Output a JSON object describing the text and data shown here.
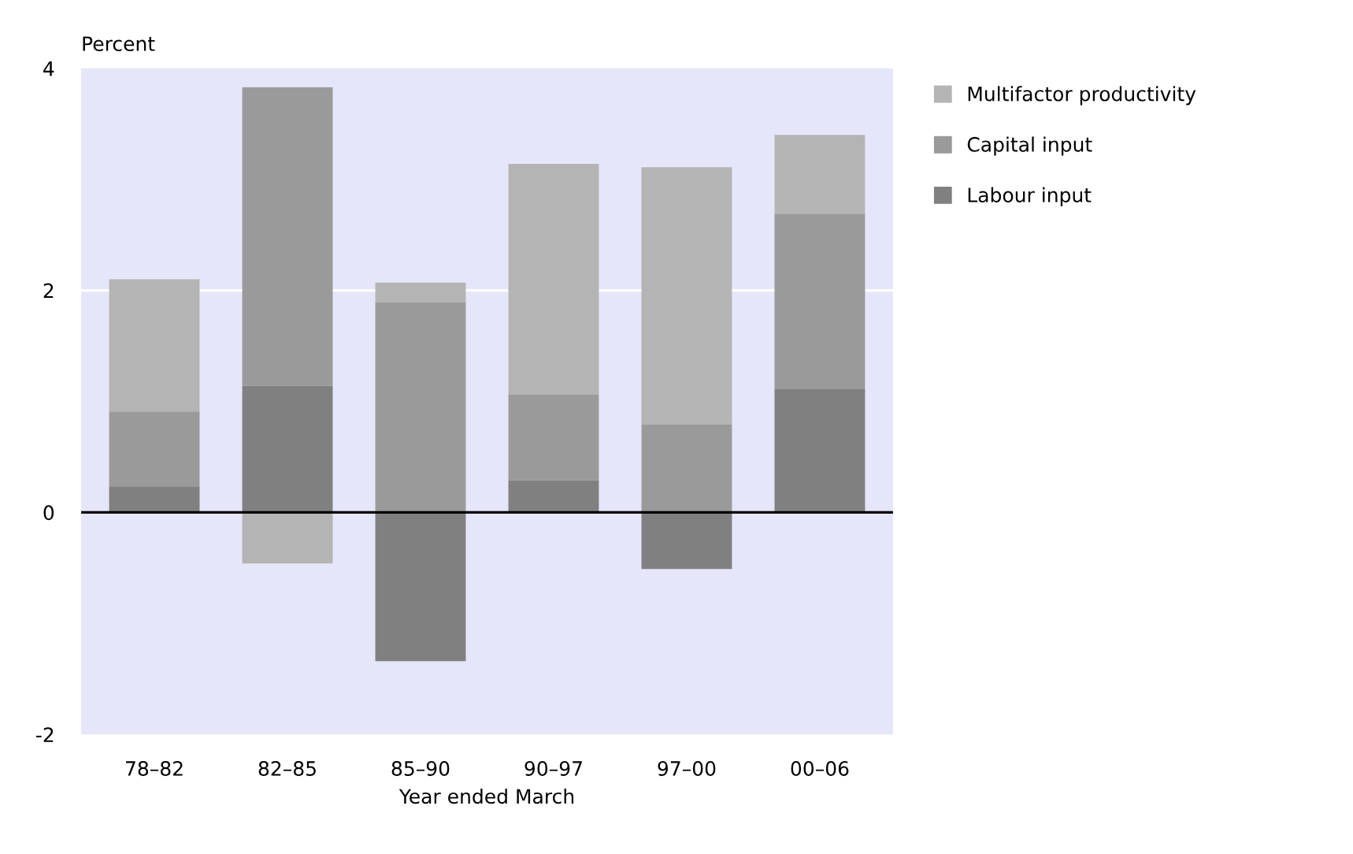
{
  "chart_data": {
    "type": "bar",
    "stacked": true,
    "ylabel": "Percent",
    "xlabel": "Year ended March",
    "categories": [
      "78–82",
      "82–85",
      "85–90",
      "90–97",
      "97–00",
      "00–06"
    ],
    "series": [
      {
        "name": "Labour input",
        "color": "#808080",
        "values": [
          0.23,
          1.14,
          -1.34,
          0.29,
          -0.51,
          1.11
        ]
      },
      {
        "name": "Capital input",
        "color": "#9a9a9a",
        "values": [
          0.68,
          2.69,
          1.89,
          0.77,
          0.79,
          1.58
        ]
      },
      {
        "name": "Multifactor productivity",
        "color": "#b4b4b4",
        "values": [
          1.19,
          -0.46,
          0.18,
          2.08,
          2.32,
          0.71
        ]
      }
    ],
    "ylim": [
      -2,
      4
    ],
    "yticks": [
      -2,
      0,
      2,
      4
    ],
    "legend": "right",
    "ref_lines": [
      {
        "axis": "y",
        "value": 0,
        "color": "#000000"
      },
      {
        "axis": "y",
        "value": 2,
        "color": "#ffffff"
      }
    ]
  }
}
